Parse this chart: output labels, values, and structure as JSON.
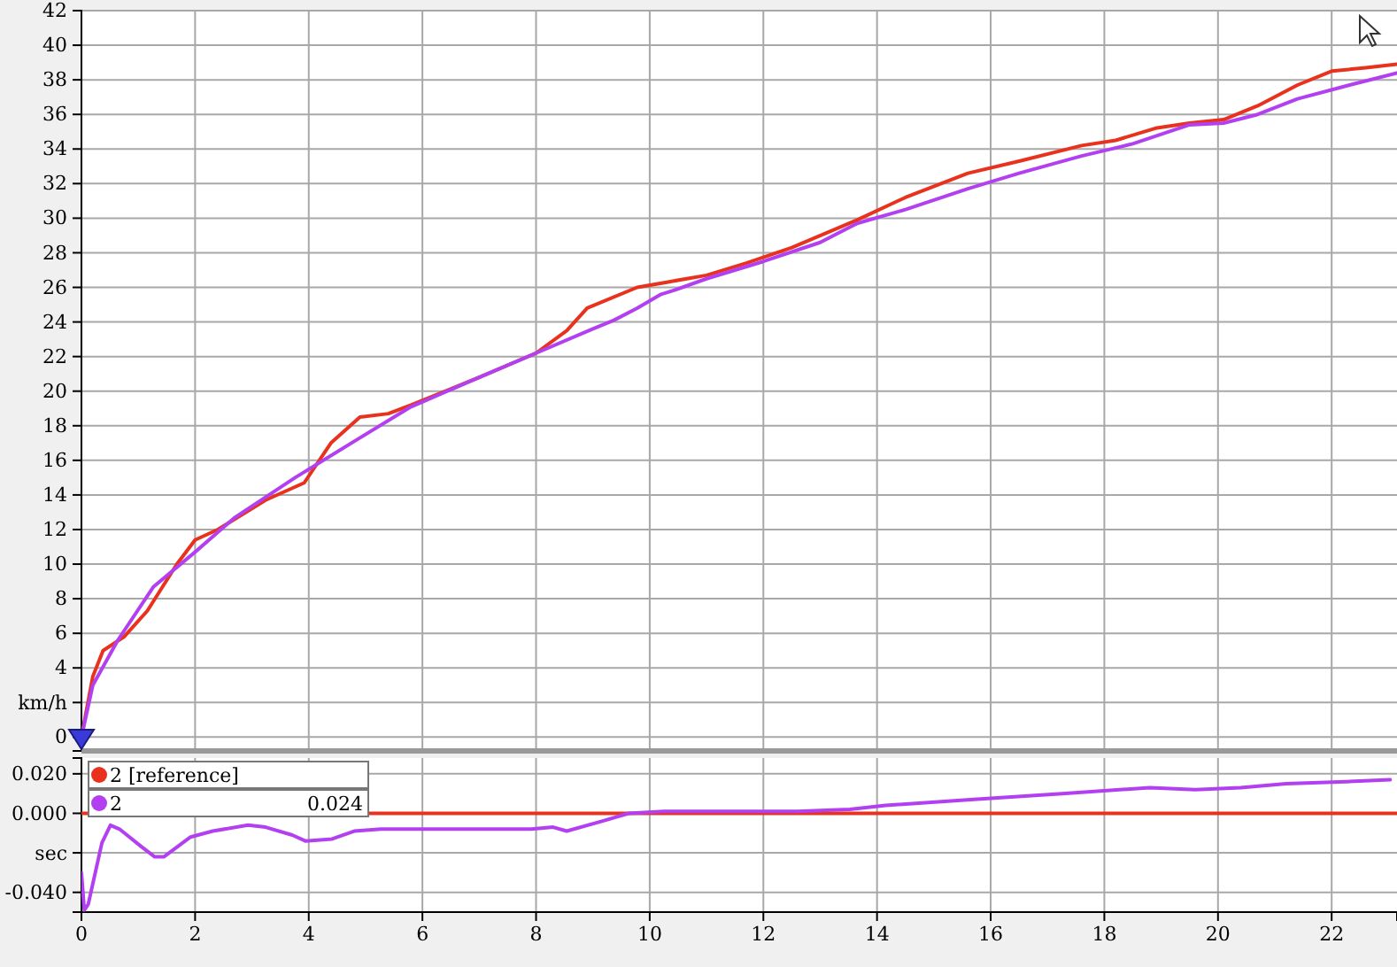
{
  "chart_data": [
    {
      "type": "line",
      "ylabel": "km/h",
      "xlim": [
        0,
        23.15
      ],
      "xticks": [
        0,
        2,
        4,
        6,
        8,
        10,
        12,
        14,
        16,
        18,
        20,
        22
      ],
      "ylim": [
        -0.8,
        42
      ],
      "yticks": [
        0,
        {
          "value": 2,
          "label": null
        },
        4,
        6,
        8,
        10,
        12,
        14,
        16,
        18,
        20,
        22,
        24,
        26,
        28,
        30,
        32,
        34,
        36,
        38,
        40,
        42
      ],
      "grid": true,
      "tick_labels": "y",
      "series": [
        {
          "color": "#e8321e",
          "x": [
            0,
            0.2,
            0.38,
            0.75,
            1.16,
            1.68,
            2.0,
            2.4,
            3.24,
            3.92,
            4.39,
            4.9,
            5.4,
            5.8,
            7,
            8,
            8.54,
            8.9,
            9.78,
            10.3,
            11,
            11.7,
            12.5,
            13.65,
            14.5,
            15.6,
            16.5,
            17.6,
            18.2,
            18.9,
            19.5,
            20.1,
            20.7,
            21.4,
            22,
            22.6,
            23.15
          ],
          "values": [
            0,
            3.5,
            5.0,
            5.8,
            7.3,
            10,
            11.4,
            12.0,
            13.7,
            14.7,
            17.0,
            18.5,
            18.7,
            19.2,
            20.8,
            22.2,
            23.5,
            24.8,
            26.0,
            26.3,
            26.7,
            27.4,
            28.3,
            29.9,
            31.2,
            32.6,
            33.3,
            34.2,
            34.5,
            35.2,
            35.5,
            35.7,
            36.5,
            37.7,
            38.5,
            38.7,
            38.9
          ]
        },
        {
          "color": "#b340f0",
          "x": [
            0,
            0.2,
            0.64,
            1.27,
            2.0,
            2.7,
            3.76,
            4.8,
            5.8,
            7,
            8,
            9,
            9.37,
            9.78,
            10.2,
            10.4,
            11,
            12,
            13,
            13.65,
            14.5,
            15.6,
            16.5,
            17.6,
            18.5,
            19.5,
            20.1,
            20.7,
            21.4,
            22.2,
            23.15
          ],
          "values": [
            0,
            3,
            5.6,
            8.7,
            10.7,
            12.7,
            15.0,
            17.1,
            19.1,
            20.8,
            22.2,
            23.6,
            24.1,
            24.8,
            25.6,
            25.8,
            26.5,
            27.5,
            28.6,
            29.7,
            30.5,
            31.7,
            32.6,
            33.6,
            34.3,
            35.4,
            35.5,
            36.0,
            36.9,
            37.6,
            38.4
          ]
        }
      ]
    },
    {
      "type": "line",
      "ylabel": "sec",
      "xlim": [
        0,
        23.15
      ],
      "xticks": [
        0,
        2,
        4,
        6,
        8,
        10,
        12,
        14,
        16,
        18,
        20,
        22
      ],
      "ylim": [
        -0.05,
        0.028
      ],
      "yticks": [
        {
          "value": 0.02,
          "label": "0.020"
        },
        {
          "value": 0,
          "label": "0.000"
        },
        {
          "value": -0.02,
          "label": null
        },
        {
          "value": -0.04,
          "label": "-0.040"
        }
      ],
      "grid": true,
      "legend": "top left",
      "annotations": [
        "0.024"
      ],
      "series": [
        {
          "name": "2 [reference]",
          "color": "#e8321e",
          "x": [
            0,
            23.15
          ],
          "values": [
            0,
            0
          ]
        },
        {
          "name": "2",
          "color": "#b340f0",
          "x": [
            0,
            0.05,
            0.12,
            0.36,
            0.51,
            0.67,
            1.06,
            1.29,
            1.45,
            1.92,
            2.31,
            2.93,
            3.24,
            3.71,
            3.94,
            4.41,
            4.8,
            5.27,
            6.36,
            7.92,
            8.3,
            8.54,
            9.16,
            9.63,
            10.25,
            12.6,
            13.52,
            14.15,
            15.7,
            17.26,
            18.8,
            19.6,
            20.4,
            21.2,
            22.25,
            23.03
          ],
          "values": [
            -0.03,
            -0.049,
            -0.046,
            -0.015,
            -0.006,
            -0.008,
            -0.017,
            -0.022,
            -0.022,
            -0.012,
            -0.009,
            -0.006,
            -0.007,
            -0.011,
            -0.014,
            -0.013,
            -0.009,
            -0.008,
            -0.008,
            -0.008,
            -0.007,
            -0.009,
            -0.004,
            0.0,
            0.001,
            0.001,
            0.002,
            0.004,
            0.007,
            0.01,
            0.013,
            0.012,
            0.013,
            0.015,
            0.016,
            0.017
          ]
        }
      ]
    }
  ]
}
